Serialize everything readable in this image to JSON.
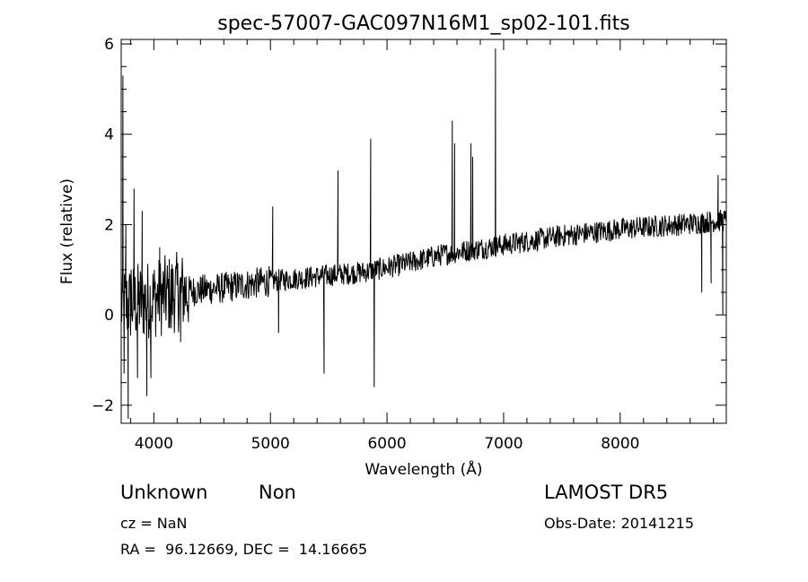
{
  "chart_data": {
    "type": "line",
    "title": "spec-57007-GAC097N16M1_sp02-101.fits",
    "xlabel": "Wavelength (Å)",
    "ylabel": "Flux (relative)",
    "xlim": [
      3720,
      8910
    ],
    "ylim": [
      -2.4,
      6.1
    ],
    "xticks": [
      4000,
      5000,
      6000,
      7000,
      8000
    ],
    "yticks": [
      -2,
      0,
      2,
      4,
      6
    ],
    "x_minor_step": 200,
    "y_minor_step": 0.5,
    "grid": false,
    "line_color": "#000000",
    "baseline": [
      [
        3720,
        0.2
      ],
      [
        3900,
        0.3
      ],
      [
        4200,
        0.5
      ],
      [
        4600,
        0.6
      ],
      [
        5000,
        0.75
      ],
      [
        5400,
        0.85
      ],
      [
        5800,
        0.95
      ],
      [
        6100,
        1.1
      ],
      [
        6500,
        1.35
      ],
      [
        7000,
        1.55
      ],
      [
        7500,
        1.75
      ],
      [
        8000,
        1.9
      ],
      [
        8500,
        2.0
      ],
      [
        8910,
        2.1
      ]
    ],
    "features": [
      {
        "x": 3735,
        "y": 5.3
      },
      {
        "x": 3745,
        "y": -1.3
      },
      {
        "x": 3760,
        "y": 2.0
      },
      {
        "x": 3780,
        "y": -2.3
      },
      {
        "x": 3805,
        "y": 1.0
      },
      {
        "x": 3830,
        "y": 2.8
      },
      {
        "x": 3860,
        "y": -1.4
      },
      {
        "x": 3900,
        "y": 2.3
      },
      {
        "x": 3940,
        "y": -1.8
      },
      {
        "x": 3975,
        "y": -1.4
      },
      {
        "x": 4050,
        "y": 1.5
      },
      {
        "x": 4150,
        "y": -0.3
      },
      {
        "x": 4230,
        "y": -0.6
      },
      {
        "x": 5020,
        "y": 2.4
      },
      {
        "x": 5070,
        "y": -0.4
      },
      {
        "x": 5460,
        "y": -1.3
      },
      {
        "x": 5580,
        "y": 3.2
      },
      {
        "x": 5860,
        "y": 3.9
      },
      {
        "x": 5890,
        "y": -1.6
      },
      {
        "x": 6560,
        "y": 4.3
      },
      {
        "x": 6580,
        "y": 3.8
      },
      {
        "x": 6720,
        "y": 3.8
      },
      {
        "x": 6735,
        "y": 3.5
      },
      {
        "x": 6930,
        "y": 5.9
      },
      {
        "x": 8700,
        "y": 0.5
      },
      {
        "x": 8780,
        "y": 0.7
      },
      {
        "x": 8840,
        "y": 3.1
      },
      {
        "x": 8880,
        "y": 0.0
      }
    ]
  },
  "meta": {
    "class": "Unknown",
    "subclass": "Non",
    "cz": "cz = NaN",
    "survey": "LAMOST DR5",
    "obs_date": "Obs-Date: 20141215",
    "radec": "RA =  96.12669, DEC =  14.16665"
  }
}
